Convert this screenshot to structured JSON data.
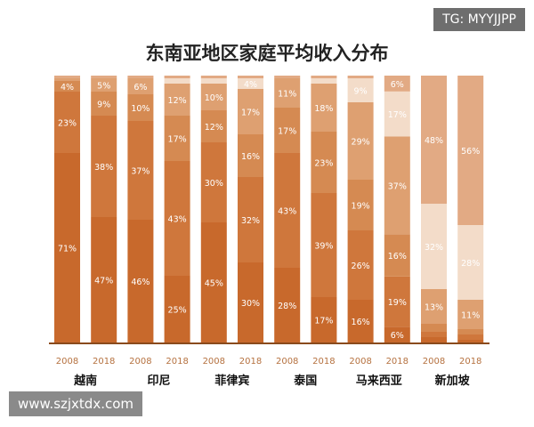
{
  "watermark_top": "TG: MYYJJPP",
  "watermark_bottom": "www.szjxtdx.com",
  "chart_data": {
    "type": "bar",
    "stacked": true,
    "title": "东南亚地区家庭平均收入分布",
    "countries": [
      "越南",
      "印尼",
      "菲律宾",
      "泰国",
      "马来西亚",
      "新加坡"
    ],
    "years": [
      "2008",
      "2018"
    ],
    "colors": [
      "#c8692c",
      "#cf773c",
      "#d58a52",
      "#dea071",
      "#f3dcc9",
      "#e2aa84"
    ],
    "bars": [
      {
        "country": "越南",
        "year": "2008",
        "values": [
          71,
          23,
          4,
          1,
          0,
          1
        ]
      },
      {
        "country": "越南",
        "year": "2018",
        "values": [
          47,
          38,
          9,
          5,
          0,
          1
        ]
      },
      {
        "country": "印尼",
        "year": "2008",
        "values": [
          46,
          37,
          10,
          6,
          0,
          1
        ]
      },
      {
        "country": "印尼",
        "year": "2018",
        "values": [
          25,
          43,
          17,
          12,
          2,
          1
        ]
      },
      {
        "country": "菲律宾",
        "year": "2008",
        "values": [
          45,
          30,
          12,
          10,
          2,
          1
        ]
      },
      {
        "country": "菲律宾",
        "year": "2018",
        "values": [
          30,
          32,
          16,
          17,
          4,
          1
        ]
      },
      {
        "country": "泰国",
        "year": "2008",
        "values": [
          28,
          43,
          17,
          11,
          0,
          1
        ]
      },
      {
        "country": "泰国",
        "year": "2018",
        "values": [
          17,
          39,
          23,
          18,
          2,
          1
        ]
      },
      {
        "country": "马来西亚",
        "year": "2008",
        "values": [
          16,
          26,
          19,
          29,
          9,
          1
        ]
      },
      {
        "country": "马来西亚",
        "year": "2018",
        "values": [
          6,
          19,
          16,
          37,
          17,
          6
        ]
      },
      {
        "country": "新加坡",
        "year": "2008",
        "values": [
          2,
          2,
          3,
          13,
          32,
          48
        ]
      },
      {
        "country": "新加坡",
        "year": "2018",
        "values": [
          1,
          2,
          2,
          11,
          28,
          56
        ]
      }
    ],
    "ylim": [
      0,
      100
    ],
    "grid": false
  }
}
